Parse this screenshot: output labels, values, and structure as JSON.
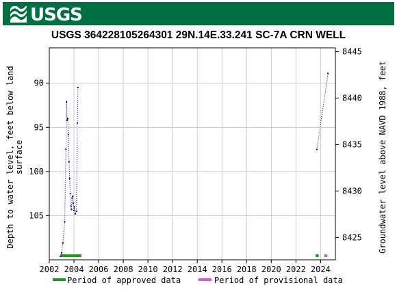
{
  "header": {
    "logo_text": "USGS"
  },
  "chart_data": {
    "type": "scatter",
    "title": "USGS 364228105264301 29N.14E.33.241 SC-7A CRN WELL",
    "ylabel_left": [
      "Depth to water level, feet below land",
      "surface"
    ],
    "ylabel_right": "Groundwater level above NAVD 1988, feet",
    "xlim": [
      2002,
      2025.2
    ],
    "ylim_left": [
      110,
      86
    ],
    "ylim_right": [
      8422.6,
      8445.4
    ],
    "x_ticks": [
      "2002",
      "2004",
      "2006",
      "2008",
      "2010",
      "2012",
      "2014",
      "2016",
      "2018",
      "2020",
      "2022",
      "2024"
    ],
    "y_ticks_left": [
      "90",
      "95",
      "100",
      "105"
    ],
    "y_ticks_right": [
      "8425",
      "8430",
      "8435",
      "8440",
      "8445"
    ],
    "series": [
      {
        "values": [
          [
            2002.9,
            109.6
          ],
          [
            2003.0,
            109.2
          ],
          [
            2003.1,
            108.1
          ],
          [
            2003.25,
            105.7
          ],
          [
            2003.35,
            97.5
          ],
          [
            2003.4,
            92.1
          ],
          [
            2003.45,
            94.2
          ],
          [
            2003.5,
            94.0
          ],
          [
            2003.55,
            95.8
          ],
          [
            2003.6,
            98.9
          ],
          [
            2003.65,
            100.8
          ],
          [
            2003.7,
            102.5
          ],
          [
            2003.75,
            103.9
          ],
          [
            2003.8,
            104.3
          ],
          [
            2003.85,
            103.0
          ],
          [
            2003.9,
            102.8
          ],
          [
            2003.95,
            103.6
          ],
          [
            2004.0,
            104.4
          ],
          [
            2004.05,
            104.0
          ],
          [
            2004.1,
            104.8
          ],
          [
            2004.2,
            104.5
          ],
          [
            2004.27,
            94.5
          ],
          [
            2004.32,
            90.5
          ]
        ]
      },
      {
        "values": [
          [
            2023.7,
            97.5
          ],
          [
            2024.6,
            88.9
          ]
        ]
      }
    ],
    "periods": [
      {
        "label": "Period of approved data",
        "color": "#1b9e1b",
        "ranges": [
          [
            2002.9,
            2004.6
          ],
          [
            2023.6,
            2023.85
          ]
        ]
      },
      {
        "label": "Period of provisional data",
        "color": "#dd55dd",
        "ranges": [
          [
            2024.3,
            2024.55
          ]
        ]
      }
    ],
    "grid": true,
    "point_color": "#00008b"
  }
}
